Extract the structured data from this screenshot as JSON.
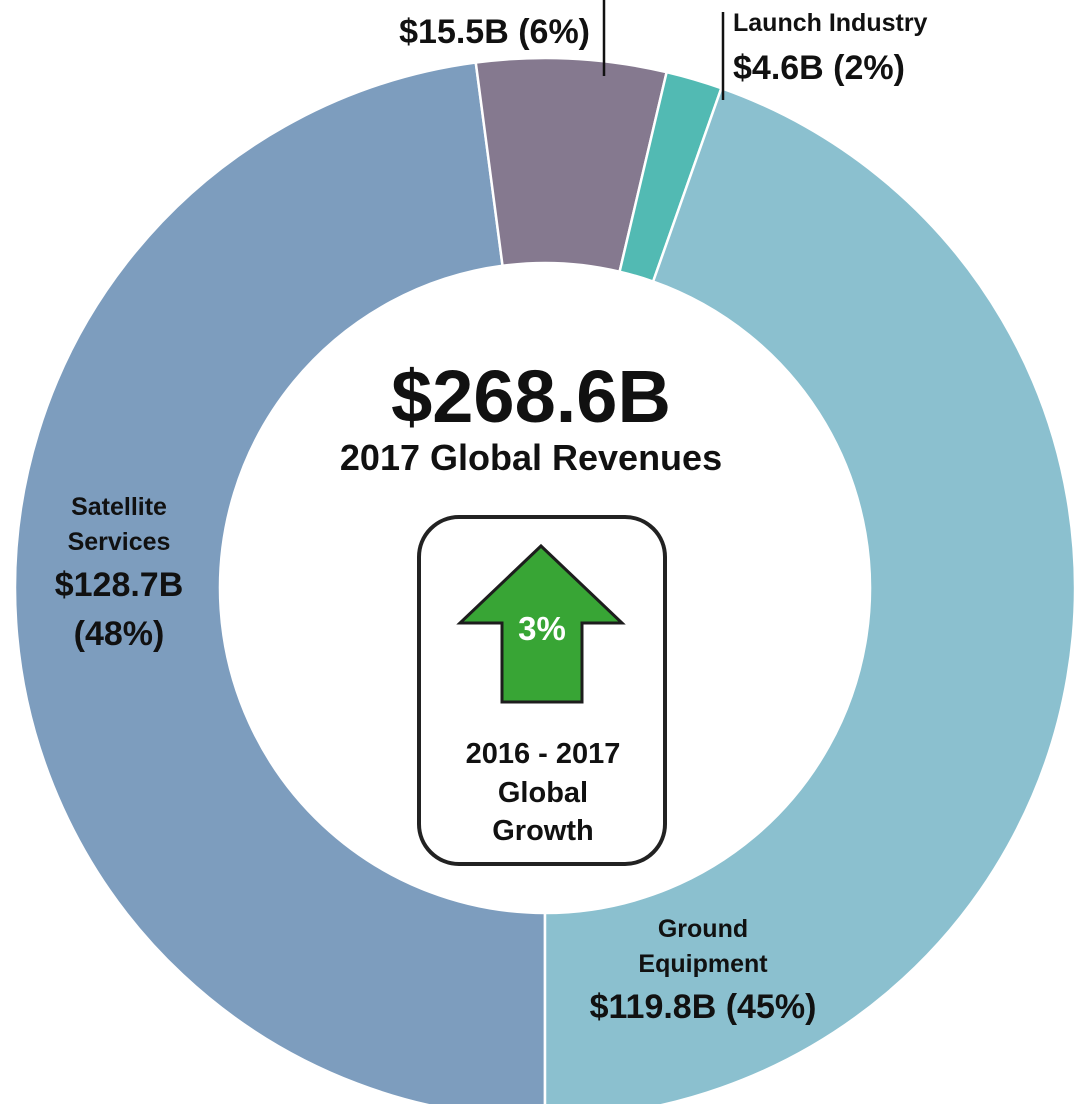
{
  "chart_data": {
    "type": "pie",
    "variant": "donut",
    "center": {
      "total": "$268.6B",
      "subtitle": "2017 Global Revenues"
    },
    "growth": {
      "percent": "3%",
      "caption_lines": [
        "2016 - 2017",
        "Global",
        "Growth"
      ],
      "arrow_color": "#38a535"
    },
    "slices": [
      {
        "name": "Satellite Services",
        "name_lines": [
          "Satellite",
          "Services"
        ],
        "value": 128.7,
        "value_label": "$128.7B",
        "percent_label": "(48%)",
        "color": "#7d9dbe"
      },
      {
        "name": "",
        "name_lines": [],
        "value": 15.5,
        "value_label": "$15.5B (6%)",
        "color": "#85798f"
      },
      {
        "name": "Launch Industry",
        "name_lines": [
          "Launch Industry"
        ],
        "value": 4.6,
        "value_label": "$4.6B (2%)",
        "color": "#52bab3"
      },
      {
        "name": "Ground Equipment",
        "name_lines": [
          "Ground",
          "Equipment"
        ],
        "value": 119.8,
        "value_label": "$119.8B (45%)",
        "color": "#8bc0cf"
      }
    ]
  }
}
